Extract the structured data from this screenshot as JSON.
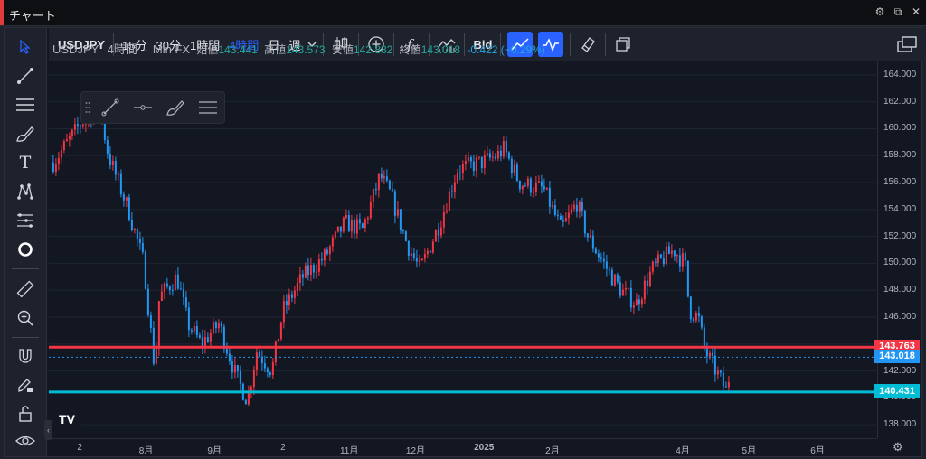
{
  "window": {
    "title": "チャート"
  },
  "toolbar": {
    "symbol": "USDJPY",
    "intervals": [
      "15分",
      "30分",
      "1時間",
      "4時間",
      "日",
      "週"
    ],
    "active_interval": "4時間",
    "bid_label": "Bid"
  },
  "legend": {
    "symbol": "USDJPY",
    "interval": "4時間",
    "source": "Min FX",
    "open_label": "始値",
    "open": "143.441",
    "high_label": "高値",
    "high": "143.573",
    "low_label": "安値",
    "low": "142.882",
    "close_label": "終値",
    "close": "143.018",
    "change": "-0.422 (−0.29%)"
  },
  "price_axis": [
    "164.000",
    "162.000",
    "160.000",
    "158.000",
    "156.000",
    "154.000",
    "152.000",
    "150.000",
    "148.000",
    "146.000",
    "144.000",
    "142.000",
    "140.000",
    "138.000"
  ],
  "time_axis": [
    "2",
    "8月",
    "9月",
    "2",
    "11月",
    "12月",
    "2025",
    "2月",
    "4月",
    "5月",
    "6月"
  ],
  "lines": {
    "resistance": {
      "price": "143.763",
      "color": "#f23645"
    },
    "current": {
      "price": "143.018",
      "color": "#2196f3"
    },
    "support": {
      "price": "140.431",
      "color": "#00bcd4"
    }
  },
  "colors": {
    "up": "#f23645",
    "down": "#2196f3"
  },
  "chart_data": {
    "type": "candlestick",
    "symbol": "USDJPY",
    "interval": "4時間",
    "ylim": [
      137,
      165
    ],
    "y_ticks": [
      138,
      140,
      142,
      144,
      146,
      148,
      150,
      152,
      154,
      156,
      158,
      160,
      162,
      164
    ],
    "x_ticks": [
      "2",
      "8月",
      "9月",
      "2",
      "11月",
      "12月",
      "2025",
      "2月",
      "4月",
      "5月",
      "6月"
    ],
    "path": [
      [
        "2024-06-20",
        157.5
      ],
      [
        "2024-07-03",
        160.5
      ],
      [
        "2024-07-11",
        161.5
      ],
      [
        "2024-07-15",
        158.0
      ],
      [
        "2024-07-24",
        154.0
      ],
      [
        "2024-07-31",
        150.0
      ],
      [
        "2024-08-05",
        142.0
      ],
      [
        "2024-08-07",
        147.5
      ],
      [
        "2024-08-15",
        149.0
      ],
      [
        "2024-08-20",
        145.5
      ],
      [
        "2024-08-26",
        144.0
      ],
      [
        "2024-09-03",
        145.5
      ],
      [
        "2024-09-11",
        141.5
      ],
      [
        "2024-09-16",
        139.8
      ],
      [
        "2024-09-20",
        143.5
      ],
      [
        "2024-09-27",
        142.0
      ],
      [
        "2024-10-02",
        146.5
      ],
      [
        "2024-10-11",
        149.0
      ],
      [
        "2024-10-21",
        150.5
      ],
      [
        "2024-10-30",
        153.0
      ],
      [
        "2024-11-07",
        152.5
      ],
      [
        "2024-11-15",
        156.5
      ],
      [
        "2024-11-20",
        155.0
      ],
      [
        "2024-11-27",
        151.5
      ],
      [
        "2024-12-03",
        149.5
      ],
      [
        "2024-12-12",
        153.0
      ],
      [
        "2024-12-20",
        157.0
      ],
      [
        "2024-12-31",
        157.5
      ],
      [
        "2025-01-07",
        158.0
      ],
      [
        "2025-01-10",
        158.5
      ],
      [
        "2025-01-17",
        156.0
      ],
      [
        "2025-01-28",
        155.5
      ],
      [
        "2025-02-05",
        152.5
      ],
      [
        "2025-02-12",
        154.5
      ],
      [
        "2025-02-17",
        152.0
      ],
      [
        "2025-02-26",
        149.5
      ],
      [
        "2025-03-04",
        148.0
      ],
      [
        "2025-03-11",
        147.0
      ],
      [
        "2025-03-18",
        149.5
      ],
      [
        "2025-03-24",
        150.5
      ],
      [
        "2025-03-28",
        151.0
      ],
      [
        "2025-04-02",
        150.0
      ],
      [
        "2025-04-04",
        146.5
      ],
      [
        "2025-04-08",
        146.0
      ],
      [
        "2025-04-11",
        143.5
      ],
      [
        "2025-04-16",
        142.0
      ],
      [
        "2025-04-21",
        140.4
      ],
      [
        "2025-04-23",
        143.0
      ]
    ],
    "horizontal_lines": [
      {
        "price": 143.763,
        "color": "#f23645"
      },
      {
        "price": 143.018,
        "color": "#2196f3"
      },
      {
        "price": 140.431,
        "color": "#00bcd4"
      }
    ]
  }
}
